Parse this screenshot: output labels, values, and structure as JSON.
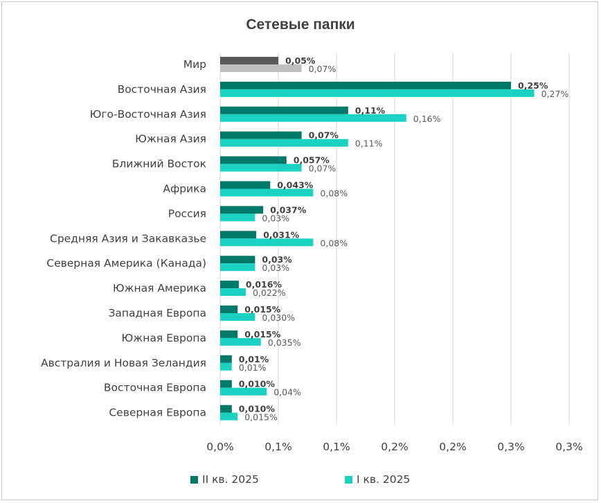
{
  "chart_data": {
    "type": "bar",
    "orientation": "horizontal",
    "title": "Сетевые папки",
    "xlabel": "",
    "ylabel": "",
    "x_ticks": [
      "0,0%",
      "0,1%",
      "0,1%",
      "0,2%",
      "0,2%",
      "0,3%",
      "0,3%"
    ],
    "xlim": [
      0,
      0.3
    ],
    "grid": "vertical",
    "legend_position": "bottom",
    "categories": [
      "Мир",
      "Восточная Азия",
      "Юго-Восточная Азия",
      "Южная Азия",
      "Ближний Восток",
      "Африка",
      "Россия",
      "Средняя Азия и Закавказье",
      "Северная Америка (Канада)",
      "Южная Америка",
      "Западная Европа",
      "Южная Европа",
      "Австралия и Новая Зеландия",
      "Восточная Европа",
      "Северная Европа"
    ],
    "series": [
      {
        "name": "II кв. 2025",
        "color": "#00796b",
        "values": [
          0.05,
          0.25,
          0.11,
          0.07,
          0.057,
          0.043,
          0.037,
          0.031,
          0.03,
          0.016,
          0.015,
          0.015,
          0.01,
          0.01,
          0.01
        ],
        "labels": [
          "0,05%",
          "0,25%",
          "0,11%",
          "0,07%",
          "0,057%",
          "0,043%",
          "0,037%",
          "0,031%",
          "0,03%",
          "0,016%",
          "0,015%",
          "0,015%",
          "0,01%",
          "0,010%",
          "0,010%"
        ]
      },
      {
        "name": "I кв. 2025",
        "color": "#1bd1c1",
        "values": [
          0.07,
          0.27,
          0.16,
          0.11,
          0.07,
          0.08,
          0.03,
          0.08,
          0.03,
          0.022,
          0.03,
          0.035,
          0.01,
          0.04,
          0.015
        ],
        "labels": [
          "0,07%",
          "0,27%",
          "0,16%",
          "0,11%",
          "0,07%",
          "0,08%",
          "0,03%",
          "0,08%",
          "0,03%",
          "0,022%",
          "0,030%",
          "0,035%",
          "0,01%",
          "0,04%",
          "0,015%"
        ]
      }
    ],
    "world_colors": [
      "#595959",
      "#bfbfbf"
    ]
  }
}
